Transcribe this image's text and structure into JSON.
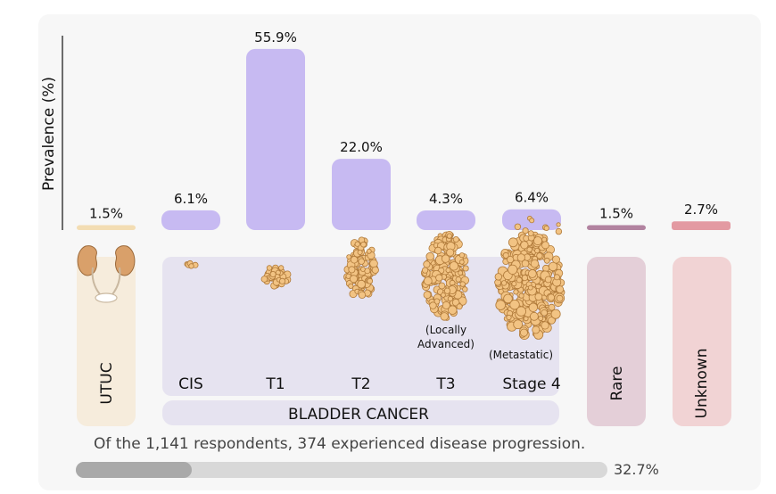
{
  "chart_data": {
    "type": "bar",
    "ylabel": "Prevalence (%)",
    "categories": [
      "UTUC",
      "CIS",
      "T1",
      "T2",
      "T3",
      "Stage 4",
      "Rare",
      "Unknown"
    ],
    "values": [
      1.5,
      6.1,
      55.9,
      22.0,
      4.3,
      6.4,
      1.5,
      2.7
    ],
    "value_labels": [
      "1.5%",
      "6.1%",
      "55.9%",
      "22.0%",
      "4.3%",
      "6.4%",
      "1.5%",
      "2.7%"
    ],
    "sublabels": {
      "T3": "(Locally\nAdvanced)",
      "Stage 4": "(Metastatic)"
    },
    "group_label": "BLADDER CANCER",
    "group_members": [
      "CIS",
      "T1",
      "T2",
      "T3",
      "Stage 4"
    ],
    "ylim": [
      0,
      60
    ],
    "colors": {
      "UTUC": "#f3ddb3",
      "bladder": "#c7baf2",
      "Rare": "#b283a0",
      "Unknown": "#e39aa2",
      "UTUC_panel": "#f6ecdc",
      "bladder_panel": "#e6e3f0",
      "Rare_panel": "#e4cfd8",
      "Unknown_panel": "#f1d3d4",
      "tumor": "#f2c383"
    },
    "icons": [
      "kidney-icon",
      "tumor-cluster-icon"
    ]
  },
  "footnote": "Of the 1,141 respondents, 374 experienced disease progression.",
  "progress": {
    "value": 0.327,
    "label": "32.7%"
  }
}
